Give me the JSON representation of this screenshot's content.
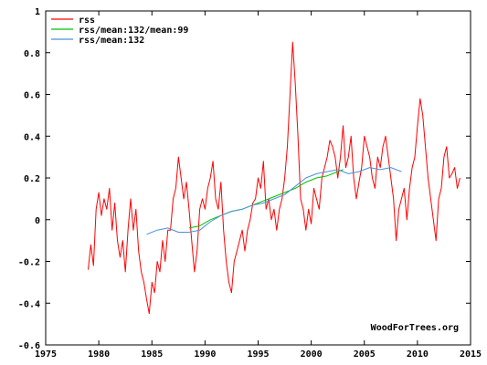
{
  "chart_data": {
    "type": "line",
    "title": "",
    "xlabel": "",
    "ylabel": "",
    "xlim": [
      1975,
      2015
    ],
    "ylim": [
      -0.6,
      1
    ],
    "x_ticks": [
      1975,
      1980,
      1985,
      1990,
      1995,
      2000,
      2005,
      2010,
      2015
    ],
    "x_tick_labels": [
      "1975",
      "1980",
      "1985",
      "1990",
      "1995",
      "2000",
      "2005",
      "2010",
      "2015"
    ],
    "y_ticks": [
      -0.6,
      -0.4,
      -0.2,
      0,
      0.2,
      0.4,
      0.6,
      0.8,
      1
    ],
    "y_tick_labels": [
      "-0.6",
      "-0.4",
      "-0.2",
      "0",
      "0.2",
      "0.4",
      "0.6",
      "0.8",
      "1"
    ],
    "grid": false,
    "legend_position": "top-left",
    "credit": "WoodForTrees.org",
    "series": [
      {
        "name": "rss",
        "color": "#ff0000",
        "x": [
          1979.0,
          1979.25,
          1979.5,
          1979.75,
          1980.0,
          1980.25,
          1980.5,
          1980.75,
          1981.0,
          1981.25,
          1981.5,
          1981.75,
          1982.0,
          1982.25,
          1982.5,
          1982.75,
          1983.0,
          1983.25,
          1983.5,
          1983.75,
          1984.0,
          1984.25,
          1984.5,
          1984.75,
          1985.0,
          1985.25,
          1985.5,
          1985.75,
          1986.0,
          1986.25,
          1986.5,
          1986.75,
          1987.0,
          1987.25,
          1987.5,
          1987.75,
          1988.0,
          1988.25,
          1988.5,
          1988.75,
          1989.0,
          1989.25,
          1989.5,
          1989.75,
          1990.0,
          1990.25,
          1990.5,
          1990.75,
          1991.0,
          1991.25,
          1991.5,
          1991.75,
          1992.0,
          1992.25,
          1992.5,
          1992.75,
          1993.0,
          1993.25,
          1993.5,
          1993.75,
          1994.0,
          1994.25,
          1994.5,
          1994.75,
          1995.0,
          1995.25,
          1995.5,
          1995.75,
          1996.0,
          1996.25,
          1996.5,
          1996.75,
          1997.0,
          1997.25,
          1997.5,
          1997.75,
          1998.0,
          1998.25,
          1998.5,
          1998.75,
          1999.0,
          1999.25,
          1999.5,
          1999.75,
          2000.0,
          2000.25,
          2000.5,
          2000.75,
          2001.0,
          2001.25,
          2001.5,
          2001.75,
          2002.0,
          2002.25,
          2002.5,
          2002.75,
          2003.0,
          2003.25,
          2003.5,
          2003.75,
          2004.0,
          2004.25,
          2004.5,
          2004.75,
          2005.0,
          2005.25,
          2005.5,
          2005.75,
          2006.0,
          2006.25,
          2006.5,
          2006.75,
          2007.0,
          2007.25,
          2007.5,
          2007.75,
          2008.0,
          2008.25,
          2008.5,
          2008.75,
          2009.0,
          2009.25,
          2009.5,
          2009.75,
          2010.0,
          2010.25,
          2010.5,
          2010.75,
          2011.0,
          2011.25,
          2011.5,
          2011.75,
          2012.0,
          2012.25,
          2012.5,
          2012.75,
          2013.0,
          2013.25,
          2013.5,
          2013.75,
          2014.0
        ],
        "y": [
          -0.24,
          -0.12,
          -0.22,
          0.05,
          0.13,
          0.02,
          0.1,
          0.05,
          0.15,
          -0.05,
          0.08,
          -0.1,
          -0.18,
          -0.1,
          -0.25,
          -0.05,
          0.1,
          -0.05,
          0.05,
          -0.15,
          -0.25,
          -0.3,
          -0.38,
          -0.45,
          -0.3,
          -0.35,
          -0.2,
          -0.25,
          -0.1,
          -0.2,
          -0.05,
          -0.05,
          0.1,
          0.15,
          0.3,
          0.2,
          0.1,
          0.18,
          0.05,
          -0.1,
          -0.25,
          -0.15,
          0.05,
          0.1,
          0.05,
          0.15,
          0.2,
          0.28,
          0.1,
          0.05,
          0.18,
          -0.05,
          -0.2,
          -0.3,
          -0.35,
          -0.2,
          -0.15,
          -0.1,
          -0.05,
          -0.15,
          -0.05,
          0.0,
          0.08,
          0.1,
          0.2,
          0.15,
          0.28,
          0.05,
          0.1,
          0.0,
          0.05,
          -0.05,
          0.05,
          0.1,
          0.2,
          0.35,
          0.6,
          0.85,
          0.65,
          0.4,
          0.1,
          0.05,
          -0.05,
          0.05,
          -0.02,
          0.15,
          0.1,
          0.05,
          0.2,
          0.25,
          0.3,
          0.38,
          0.35,
          0.3,
          0.2,
          0.3,
          0.45,
          0.25,
          0.3,
          0.4,
          0.2,
          0.1,
          0.18,
          0.25,
          0.4,
          0.35,
          0.3,
          0.2,
          0.15,
          0.3,
          0.25,
          0.35,
          0.4,
          0.3,
          0.2,
          0.1,
          -0.1,
          0.05,
          0.1,
          0.15,
          0.0,
          0.15,
          0.25,
          0.3,
          0.45,
          0.58,
          0.5,
          0.35,
          0.2,
          0.1,
          0.0,
          -0.1,
          0.1,
          0.15,
          0.3,
          0.35,
          0.2,
          0.22,
          0.25,
          0.15,
          0.2
        ]
      },
      {
        "name": "rss/mean:132/mean:99",
        "color": "#00c000",
        "x": [
          1988.5,
          1989.5,
          1990.5,
          1991.5,
          1992.5,
          1993.5,
          1994.5,
          1995.5,
          1996.5,
          1997.5,
          1998.5,
          1999.5,
          2000.5,
          2001.5,
          2002.5,
          2003.0
        ],
        "y": [
          -0.04,
          -0.03,
          0.0,
          0.02,
          0.04,
          0.05,
          0.07,
          0.09,
          0.11,
          0.13,
          0.15,
          0.18,
          0.2,
          0.21,
          0.23,
          0.24
        ]
      },
      {
        "name": "rss/mean:132",
        "color": "#4a90d9",
        "x": [
          1984.5,
          1985.5,
          1986.5,
          1987.5,
          1988.5,
          1989.5,
          1990.5,
          1991.5,
          1992.5,
          1993.5,
          1994.5,
          1995.5,
          1996.5,
          1997.5,
          1998.5,
          1999.5,
          2000.5,
          2001.5,
          2002.5,
          2003.5,
          2004.5,
          2005.5,
          2006.5,
          2007.5,
          2008.5
        ],
        "y": [
          -0.07,
          -0.05,
          -0.04,
          -0.06,
          -0.06,
          -0.05,
          -0.01,
          0.02,
          0.04,
          0.05,
          0.07,
          0.08,
          0.1,
          0.12,
          0.16,
          0.2,
          0.22,
          0.23,
          0.24,
          0.22,
          0.23,
          0.25,
          0.24,
          0.25,
          0.23
        ]
      }
    ]
  }
}
